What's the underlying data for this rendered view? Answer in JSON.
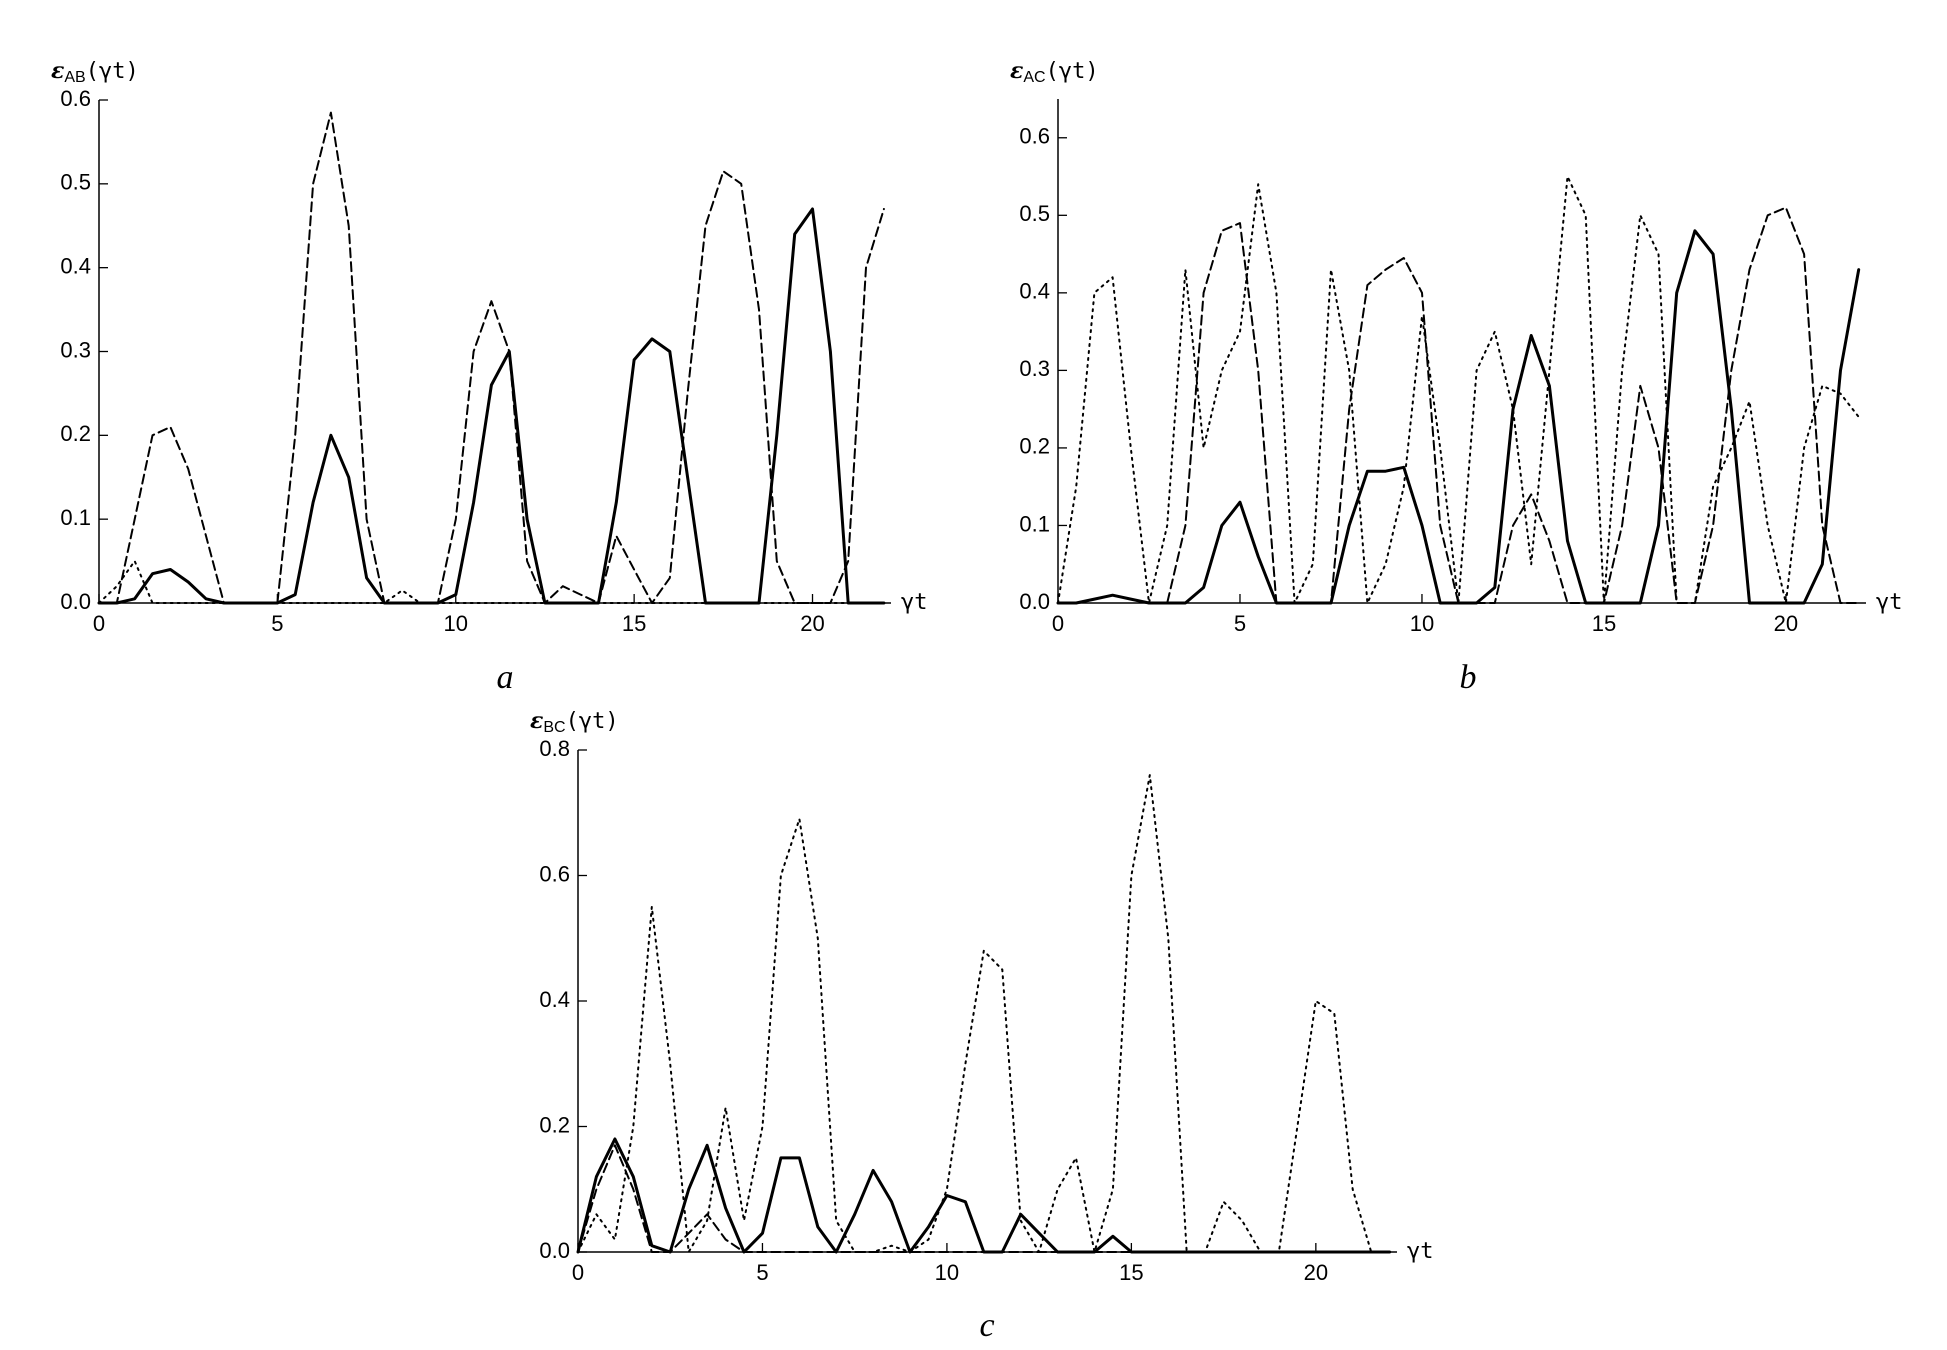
{
  "chart_data": [
    {
      "type": "line",
      "ylabel": {
        "symbol": "ε",
        "subscript": "AB",
        "argument": "(γt)"
      },
      "xlabel": "γt",
      "caption": "a",
      "x": [
        0,
        0.5,
        1,
        1.5,
        2,
        2.5,
        3,
        3.5,
        4,
        4.5,
        5,
        5.5,
        6,
        6.5,
        7,
        7.5,
        8,
        8.5,
        9,
        9.5,
        10,
        10.5,
        11,
        11.5,
        12,
        12.5,
        13,
        13.5,
        14,
        14.5,
        15,
        15.5,
        16,
        16.5,
        17,
        17.5,
        18,
        18.5,
        19,
        19.5,
        20,
        20.5,
        21,
        21.5,
        22
      ],
      "xlim": [
        0,
        22.2
      ],
      "ylim": [
        0,
        0.6
      ],
      "xticks": [
        0,
        5,
        10,
        15,
        20
      ],
      "yticks": [
        {
          "value": 0,
          "label": "0.0"
        },
        0.1,
        0.2,
        0.3,
        0.4,
        0.5,
        0.6
      ],
      "series": [
        {
          "color": "#000000",
          "style": "solid",
          "values": [
            0,
            0,
            0.005,
            0.035,
            0.04,
            0.025,
            0.005,
            0,
            0,
            0,
            0,
            0.01,
            0.12,
            0.2,
            0.15,
            0.03,
            0,
            0,
            0,
            0,
            0.01,
            0.12,
            0.26,
            0.3,
            0.1,
            0,
            0,
            0,
            0,
            0.12,
            0.29,
            0.315,
            0.3,
            0.15,
            0,
            0,
            0,
            0,
            0.2,
            0.44,
            0.47,
            0.3,
            0,
            0,
            0
          ]
        },
        {
          "color": "#000000",
          "style": "dashed",
          "values": [
            0,
            0,
            0.1,
            0.2,
            0.21,
            0.16,
            0.08,
            0,
            0,
            0,
            0,
            0.2,
            0.5,
            0.585,
            0.45,
            0.1,
            0,
            0,
            0,
            0,
            0.1,
            0.3,
            0.36,
            0.3,
            0.05,
            0,
            0.02,
            0.01,
            0,
            0.08,
            0.04,
            0,
            0.03,
            0.25,
            0.45,
            0.515,
            0.5,
            0.35,
            0.05,
            0,
            0,
            0,
            0.05,
            0.4,
            0.47
          ]
        },
        {
          "color": "#000000",
          "style": "dotted",
          "values": [
            0,
            0.02,
            0.05,
            0,
            0,
            0,
            0,
            0,
            0,
            0,
            0,
            0,
            0,
            0,
            0,
            0,
            0,
            0.015,
            0,
            0,
            0,
            0,
            0,
            0,
            0,
            0,
            0,
            0,
            0,
            0,
            0,
            0,
            0,
            0,
            0,
            0,
            0,
            0,
            0,
            0,
            0,
            0,
            0,
            0,
            0
          ]
        }
      ]
    },
    {
      "type": "line",
      "ylabel": {
        "symbol": "ε",
        "subscript": "AC",
        "argument": "(γt)"
      },
      "xlabel": "γt",
      "caption": "b",
      "x": [
        0,
        0.5,
        1,
        1.5,
        2,
        2.5,
        3,
        3.5,
        4,
        4.5,
        5,
        5.5,
        6,
        6.5,
        7,
        7.5,
        8,
        8.5,
        9,
        9.5,
        10,
        10.5,
        11,
        11.5,
        12,
        12.5,
        13,
        13.5,
        14,
        14.5,
        15,
        15.5,
        16,
        16.5,
        17,
        17.5,
        18,
        18.5,
        19,
        19.5,
        20,
        20.5,
        21,
        21.5,
        22
      ],
      "xlim": [
        0,
        22.2
      ],
      "ylim": [
        0,
        0.65
      ],
      "xticks": [
        0,
        5,
        10,
        15,
        20
      ],
      "yticks": [
        {
          "value": 0,
          "label": "0.0"
        },
        0.1,
        0.2,
        0.3,
        0.4,
        0.5,
        0.6
      ],
      "series": [
        {
          "color": "#000000",
          "style": "solid",
          "values": [
            0,
            0,
            0.005,
            0.01,
            0.005,
            0,
            0,
            0,
            0.02,
            0.1,
            0.13,
            0.06,
            0,
            0,
            0,
            0,
            0.1,
            0.17,
            0.17,
            0.175,
            0.1,
            0,
            0,
            0,
            0.02,
            0.25,
            0.345,
            0.28,
            0.08,
            0,
            0,
            0,
            0,
            0.1,
            0.4,
            0.48,
            0.45,
            0.25,
            0,
            0,
            0,
            0,
            0.05,
            0.3,
            0.43
          ]
        },
        {
          "color": "#000000",
          "style": "dashed",
          "values": [
            0,
            0,
            0.005,
            0.01,
            0.005,
            0,
            0,
            0.1,
            0.4,
            0.48,
            0.49,
            0.3,
            0,
            0,
            0,
            0,
            0.25,
            0.41,
            0.43,
            0.445,
            0.4,
            0.1,
            0,
            0,
            0,
            0.1,
            0.14,
            0.08,
            0,
            0,
            0,
            0.1,
            0.28,
            0.2,
            0,
            0,
            0.1,
            0.3,
            0.43,
            0.5,
            0.51,
            0.45,
            0.1,
            0,
            0
          ]
        },
        {
          "color": "#000000",
          "style": "dotted",
          "values": [
            0,
            0.15,
            0.4,
            0.42,
            0.2,
            0,
            0.1,
            0.43,
            0.2,
            0.3,
            0.35,
            0.54,
            0.4,
            0,
            0.05,
            0.43,
            0.3,
            0,
            0.05,
            0.15,
            0.37,
            0.2,
            0,
            0.3,
            0.35,
            0.25,
            0.05,
            0.3,
            0.55,
            0.5,
            0,
            0.3,
            0.5,
            0.45,
            0,
            0,
            0.15,
            0.2,
            0.26,
            0.1,
            0,
            0.2,
            0.28,
            0.27,
            0.24
          ]
        }
      ]
    },
    {
      "type": "line",
      "ylabel": {
        "symbol": "ε",
        "subscript": "BC",
        "argument": "(γt)"
      },
      "xlabel": "γt",
      "caption": "c",
      "x": [
        0,
        0.5,
        1,
        1.5,
        2,
        2.5,
        3,
        3.5,
        4,
        4.5,
        5,
        5.5,
        6,
        6.5,
        7,
        7.5,
        8,
        8.5,
        9,
        9.5,
        10,
        10.5,
        11,
        11.5,
        12,
        12.5,
        13,
        13.5,
        14,
        14.5,
        15,
        15.5,
        16,
        16.5,
        17,
        17.5,
        18,
        18.5,
        19,
        19.5,
        20,
        20.5,
        21,
        21.5,
        22
      ],
      "xlim": [
        0,
        22.2
      ],
      "ylim": [
        0,
        0.8
      ],
      "xticks": [
        0,
        5,
        10,
        15,
        20
      ],
      "yticks": [
        {
          "value": 0,
          "label": "0.0"
        },
        0.2,
        0.4,
        0.6,
        0.8
      ],
      "series": [
        {
          "color": "#000000",
          "style": "solid",
          "values": [
            0,
            0.12,
            0.18,
            0.12,
            0.01,
            0,
            0.1,
            0.17,
            0.07,
            0,
            0.03,
            0.15,
            0.15,
            0.04,
            0,
            0.06,
            0.13,
            0.08,
            0,
            0.04,
            0.09,
            0.08,
            0,
            0,
            0.06,
            0.03,
            0,
            0,
            0,
            0.025,
            0,
            0,
            0,
            0,
            0,
            0,
            0,
            0,
            0,
            0,
            0,
            0,
            0,
            0,
            0
          ]
        },
        {
          "color": "#000000",
          "style": "dashed",
          "values": [
            0,
            0.1,
            0.17,
            0.1,
            0,
            0,
            0.03,
            0.06,
            0.02,
            0,
            0,
            0,
            0,
            0,
            0,
            0,
            0,
            0,
            0,
            0,
            0,
            0,
            0,
            0,
            0,
            0,
            0,
            0,
            0,
            0,
            0,
            0,
            0,
            0,
            0,
            0,
            0,
            0,
            0,
            0,
            0,
            0,
            0,
            0,
            0
          ]
        },
        {
          "color": "#000000",
          "style": "dotted",
          "values": [
            0,
            0.06,
            0.02,
            0.2,
            0.55,
            0.3,
            0,
            0.05,
            0.23,
            0.05,
            0.2,
            0.6,
            0.69,
            0.5,
            0.05,
            0,
            0,
            0.01,
            0,
            0.02,
            0.1,
            0.3,
            0.48,
            0.45,
            0.05,
            0,
            0.1,
            0.15,
            0,
            0.1,
            0.6,
            0.76,
            0.5,
            0,
            0,
            0.08,
            0.05,
            0,
            0,
            0.2,
            0.4,
            0.38,
            0.1,
            0,
            0
          ]
        }
      ]
    }
  ]
}
